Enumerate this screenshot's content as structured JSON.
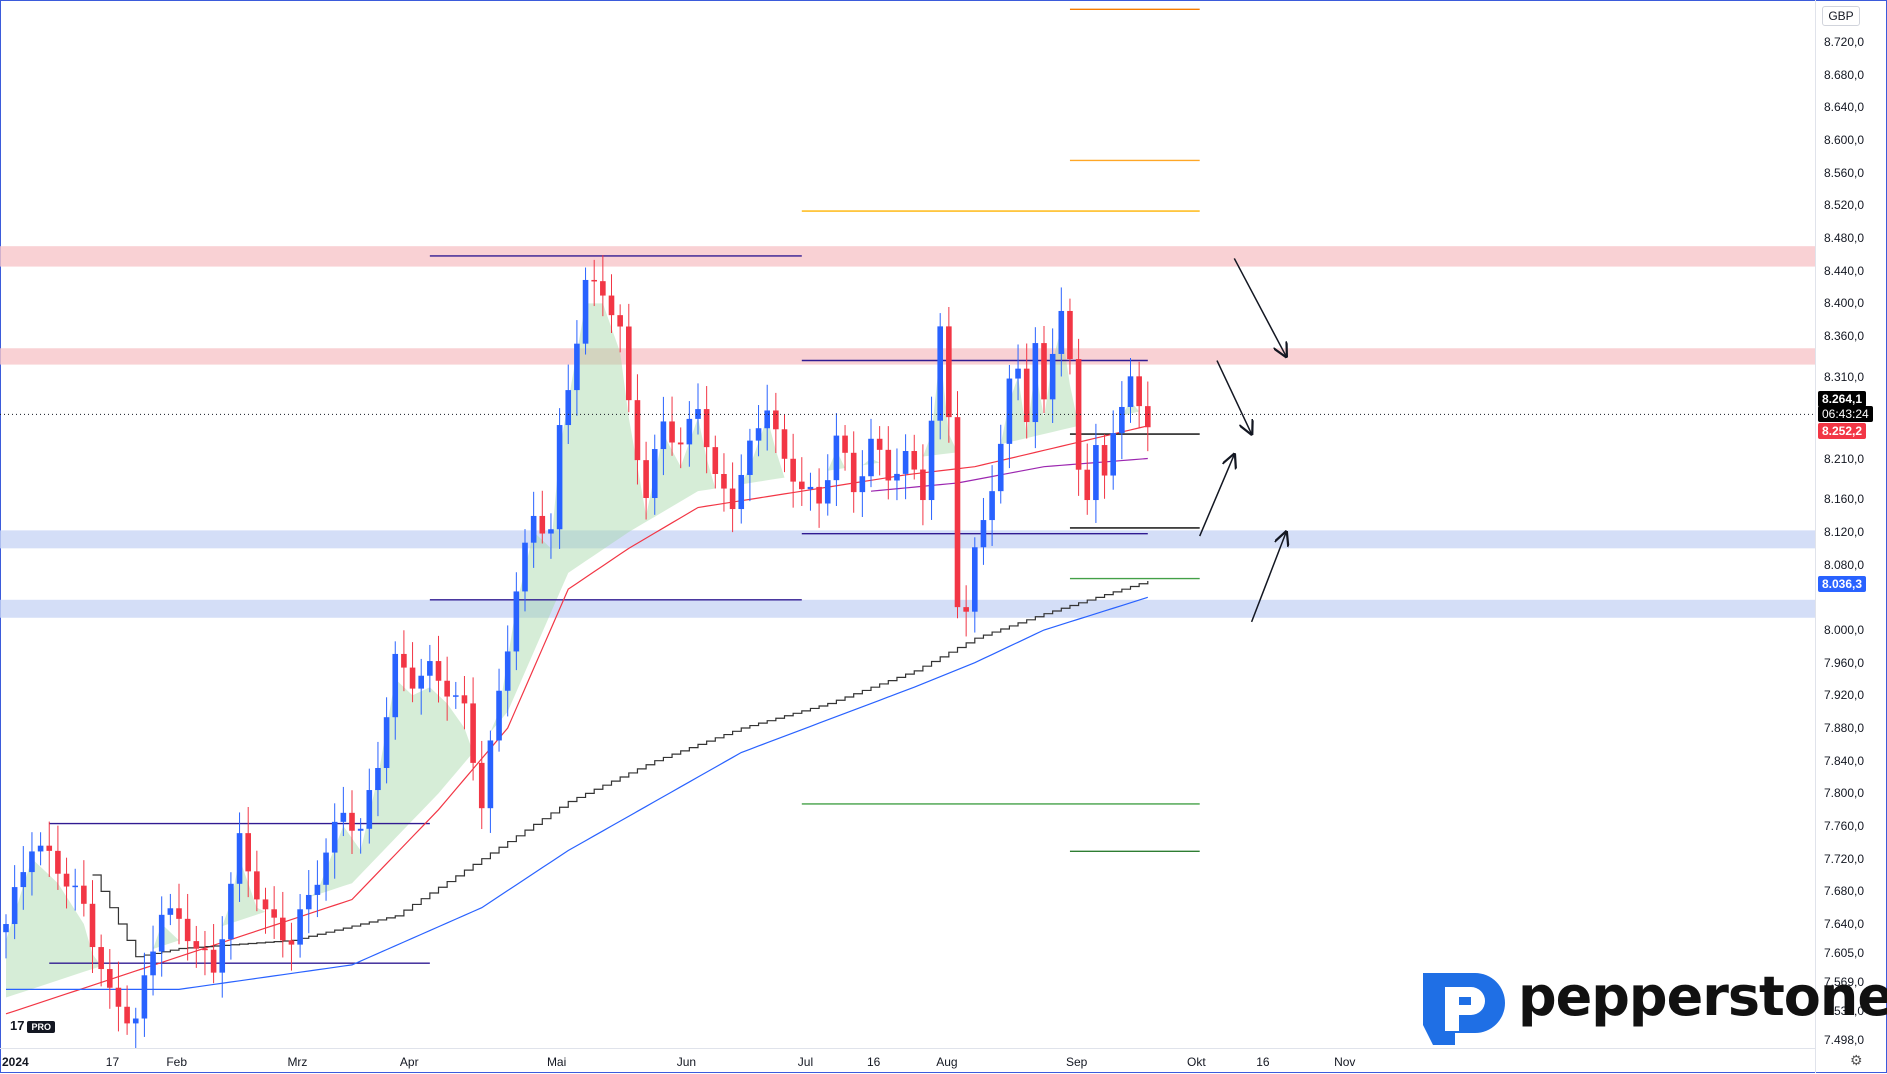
{
  "currency": "GBP",
  "price_labels": {
    "last": "8.264,1",
    "timer": "06:43:24",
    "red": "8.252,2",
    "blue": "8.036,3"
  },
  "brand": {
    "name": "pepperstone"
  },
  "platform": {
    "logo": "17",
    "tier": "PRO"
  },
  "colors": {
    "up": "#2962ff",
    "down": "#f23645",
    "resistance_zone": "#f7c6c9",
    "support_zone": "#c9d6f5"
  },
  "icons": [
    "settings-icon",
    "pepperstone-logo-icon",
    "tradingview-logo-icon"
  ],
  "chart_data": {
    "type": "candlestick",
    "title": "",
    "xlabel": "",
    "ylabel": "",
    "ylim": [
      7.488,
      8.77
    ],
    "y_ticks": [
      {
        "v": 8.72,
        "label": "8.720,0"
      },
      {
        "v": 8.68,
        "label": "8.680,0"
      },
      {
        "v": 8.64,
        "label": "8.640,0"
      },
      {
        "v": 8.6,
        "label": "8.600,0"
      },
      {
        "v": 8.56,
        "label": "8.560,0"
      },
      {
        "v": 8.52,
        "label": "8.520,0"
      },
      {
        "v": 8.48,
        "label": "8.480,0"
      },
      {
        "v": 8.44,
        "label": "8.440,0"
      },
      {
        "v": 8.4,
        "label": "8.400,0"
      },
      {
        "v": 8.36,
        "label": "8.360,0"
      },
      {
        "v": 8.31,
        "label": "8.310,0"
      },
      {
        "v": 8.21,
        "label": "8.210,0"
      },
      {
        "v": 8.16,
        "label": "8.160,0"
      },
      {
        "v": 8.12,
        "label": "8.120,0"
      },
      {
        "v": 8.08,
        "label": "8.080,0"
      },
      {
        "v": 8.0,
        "label": "8.000,0"
      },
      {
        "v": 7.96,
        "label": "7.960,0"
      },
      {
        "v": 7.92,
        "label": "7.920,0"
      },
      {
        "v": 7.88,
        "label": "7.880,0"
      },
      {
        "v": 7.84,
        "label": "7.840,0"
      },
      {
        "v": 7.8,
        "label": "7.800,0"
      },
      {
        "v": 7.76,
        "label": "7.760,0"
      },
      {
        "v": 7.72,
        "label": "7.720,0"
      },
      {
        "v": 7.68,
        "label": "7.680,0"
      },
      {
        "v": 7.64,
        "label": "7.640,0"
      },
      {
        "v": 7.605,
        "label": "7.605,0"
      },
      {
        "v": 7.569,
        "label": "7.569,0"
      },
      {
        "v": 7.534,
        "label": "7.534,0"
      },
      {
        "v": 7.498,
        "label": "7.498,0"
      }
    ],
    "x_ticks": [
      {
        "i": 0,
        "label": "2024",
        "bold": true
      },
      {
        "i": 12,
        "label": "17"
      },
      {
        "i": 19,
        "label": "Feb"
      },
      {
        "i": 33,
        "label": "Mrz"
      },
      {
        "i": 46,
        "label": "Apr"
      },
      {
        "i": 63,
        "label": "Mai"
      },
      {
        "i": 78,
        "label": "Jun"
      },
      {
        "i": 92,
        "label": "Jul"
      },
      {
        "i": 100,
        "label": "16"
      },
      {
        "i": 108,
        "label": "Aug"
      },
      {
        "i": 123,
        "label": "Sep"
      },
      {
        "i": 137,
        "label": "Okt"
      },
      {
        "i": 145,
        "label": "16"
      },
      {
        "i": 154,
        "label": "Nov"
      }
    ],
    "close_anchors": [
      [
        0,
        7.64
      ],
      [
        3,
        7.74
      ],
      [
        6,
        7.71
      ],
      [
        9,
        7.66
      ],
      [
        12,
        7.55
      ],
      [
        15,
        7.52
      ],
      [
        18,
        7.66
      ],
      [
        21,
        7.63
      ],
      [
        24,
        7.58
      ],
      [
        27,
        7.74
      ],
      [
        30,
        7.65
      ],
      [
        33,
        7.62
      ],
      [
        36,
        7.7
      ],
      [
        39,
        7.78
      ],
      [
        41,
        7.75
      ],
      [
        43,
        7.84
      ],
      [
        45,
        7.96
      ],
      [
        47,
        7.94
      ],
      [
        49,
        7.95
      ],
      [
        51,
        7.93
      ],
      [
        53,
        7.9
      ],
      [
        55,
        7.79
      ],
      [
        57,
        7.92
      ],
      [
        59,
        8.05
      ],
      [
        61,
        8.14
      ],
      [
        63,
        8.12
      ],
      [
        64,
        8.24
      ],
      [
        66,
        8.36
      ],
      [
        67,
        8.42
      ],
      [
        69,
        8.42
      ],
      [
        71,
        8.36
      ],
      [
        72,
        8.28
      ],
      [
        74,
        8.16
      ],
      [
        76,
        8.26
      ],
      [
        78,
        8.22
      ],
      [
        80,
        8.28
      ],
      [
        82,
        8.18
      ],
      [
        84,
        8.16
      ],
      [
        86,
        8.22
      ],
      [
        88,
        8.28
      ],
      [
        90,
        8.2
      ],
      [
        92,
        8.18
      ],
      [
        94,
        8.15
      ],
      [
        96,
        8.24
      ],
      [
        98,
        8.17
      ],
      [
        100,
        8.23
      ],
      [
        102,
        8.19
      ],
      [
        104,
        8.21
      ],
      [
        106,
        8.17
      ],
      [
        107,
        8.26
      ],
      [
        108,
        8.36
      ],
      [
        109,
        8.26
      ],
      [
        110,
        8.04
      ],
      [
        111,
        8.02
      ],
      [
        112,
        8.09
      ],
      [
        113,
        8.14
      ],
      [
        115,
        8.22
      ],
      [
        116,
        8.3
      ],
      [
        117,
        8.33
      ],
      [
        118,
        8.26
      ],
      [
        119,
        8.34
      ],
      [
        120,
        8.28
      ],
      [
        121,
        8.35
      ],
      [
        122,
        8.39
      ],
      [
        123,
        8.32
      ],
      [
        124,
        8.2
      ],
      [
        125,
        8.17
      ],
      [
        126,
        8.22
      ],
      [
        127,
        8.18
      ],
      [
        128,
        8.25
      ],
      [
        129,
        8.28
      ],
      [
        130,
        8.3
      ],
      [
        131,
        8.27
      ],
      [
        132,
        8.26
      ]
    ],
    "moving_averages": [
      {
        "color": "#f23645",
        "anchors": [
          [
            0,
            7.53
          ],
          [
            20,
            7.6
          ],
          [
            40,
            7.67
          ],
          [
            50,
            7.78
          ],
          [
            58,
            7.88
          ],
          [
            65,
            8.05
          ],
          [
            72,
            8.1
          ],
          [
            80,
            8.15
          ],
          [
            92,
            8.17
          ],
          [
            104,
            8.19
          ],
          [
            112,
            8.2
          ],
          [
            124,
            8.23
          ],
          [
            132,
            8.25
          ]
        ]
      },
      {
        "color": "#2962ff",
        "anchors": [
          [
            0,
            7.56
          ],
          [
            20,
            7.56
          ],
          [
            40,
            7.59
          ],
          [
            55,
            7.66
          ],
          [
            65,
            7.73
          ],
          [
            75,
            7.79
          ],
          [
            85,
            7.85
          ],
          [
            95,
            7.89
          ],
          [
            105,
            7.93
          ],
          [
            112,
            7.96
          ],
          [
            120,
            8.0
          ],
          [
            132,
            8.04
          ]
        ]
      },
      {
        "color": "#333333",
        "step": true,
        "anchors": [
          [
            10,
            7.7
          ],
          [
            15,
            7.6
          ],
          [
            20,
            7.61
          ],
          [
            33,
            7.62
          ],
          [
            45,
            7.65
          ],
          [
            55,
            7.72
          ],
          [
            65,
            7.79
          ],
          [
            75,
            7.84
          ],
          [
            85,
            7.88
          ],
          [
            95,
            7.91
          ],
          [
            105,
            7.95
          ],
          [
            112,
            7.99
          ],
          [
            120,
            8.02
          ],
          [
            132,
            8.06
          ]
        ]
      },
      {
        "color": "#9c27b0",
        "anchors": [
          [
            100,
            8.17
          ],
          [
            110,
            8.18
          ],
          [
            120,
            8.2
          ],
          [
            132,
            8.21
          ]
        ]
      }
    ],
    "zones": [
      {
        "name": "resistance-upper",
        "from": 8.445,
        "to": 8.47,
        "color": "#f7c6c9"
      },
      {
        "name": "resistance-lower",
        "from": 8.325,
        "to": 8.345,
        "color": "#f7c6c9"
      },
      {
        "name": "support-upper",
        "from": 8.1,
        "to": 8.122,
        "color": "#c9d6f5"
      },
      {
        "name": "support-lower",
        "from": 8.015,
        "to": 8.037,
        "color": "#c9d6f5"
      }
    ],
    "levels": [
      {
        "y": 8.76,
        "x1": 123,
        "x2": 138,
        "color": "#f57c00"
      },
      {
        "y": 8.575,
        "x1": 123,
        "x2": 138,
        "color": "#ffa726"
      },
      {
        "y": 8.513,
        "x1": 92,
        "x2": 138,
        "color": "#ffb300"
      },
      {
        "y": 8.458,
        "x1": 49,
        "x2": 92,
        "color": "#311b92"
      },
      {
        "y": 8.33,
        "x1": 92,
        "x2": 132,
        "color": "#311b92"
      },
      {
        "y": 8.24,
        "x1": 123,
        "x2": 138,
        "color": "#000000"
      },
      {
        "y": 8.125,
        "x1": 123,
        "x2": 138,
        "color": "#000000"
      },
      {
        "y": 8.118,
        "x1": 92,
        "x2": 132,
        "color": "#311b92"
      },
      {
        "y": 8.063,
        "x1": 123,
        "x2": 138,
        "color": "#43a047"
      },
      {
        "y": 8.037,
        "x1": 49,
        "x2": 92,
        "color": "#311b92"
      },
      {
        "y": 7.787,
        "x1": 92,
        "x2": 138,
        "color": "#43a047"
      },
      {
        "y": 7.763,
        "x1": 5,
        "x2": 49,
        "color": "#311b92"
      },
      {
        "y": 7.729,
        "x1": 123,
        "x2": 138,
        "color": "#2e7d32"
      },
      {
        "y": 7.592,
        "x1": 5,
        "x2": 49,
        "color": "#311b92"
      }
    ],
    "arrows": [
      {
        "from": [
          142,
          8.455
        ],
        "to": [
          148,
          8.335
        ]
      },
      {
        "from": [
          140,
          8.33
        ],
        "to": [
          144,
          8.24
        ]
      },
      {
        "from": [
          138,
          8.115
        ],
        "to": [
          142,
          8.215
        ]
      },
      {
        "from": [
          144,
          8.01
        ],
        "to": [
          148,
          8.12
        ]
      }
    ],
    "last_price": 8.2641
  }
}
